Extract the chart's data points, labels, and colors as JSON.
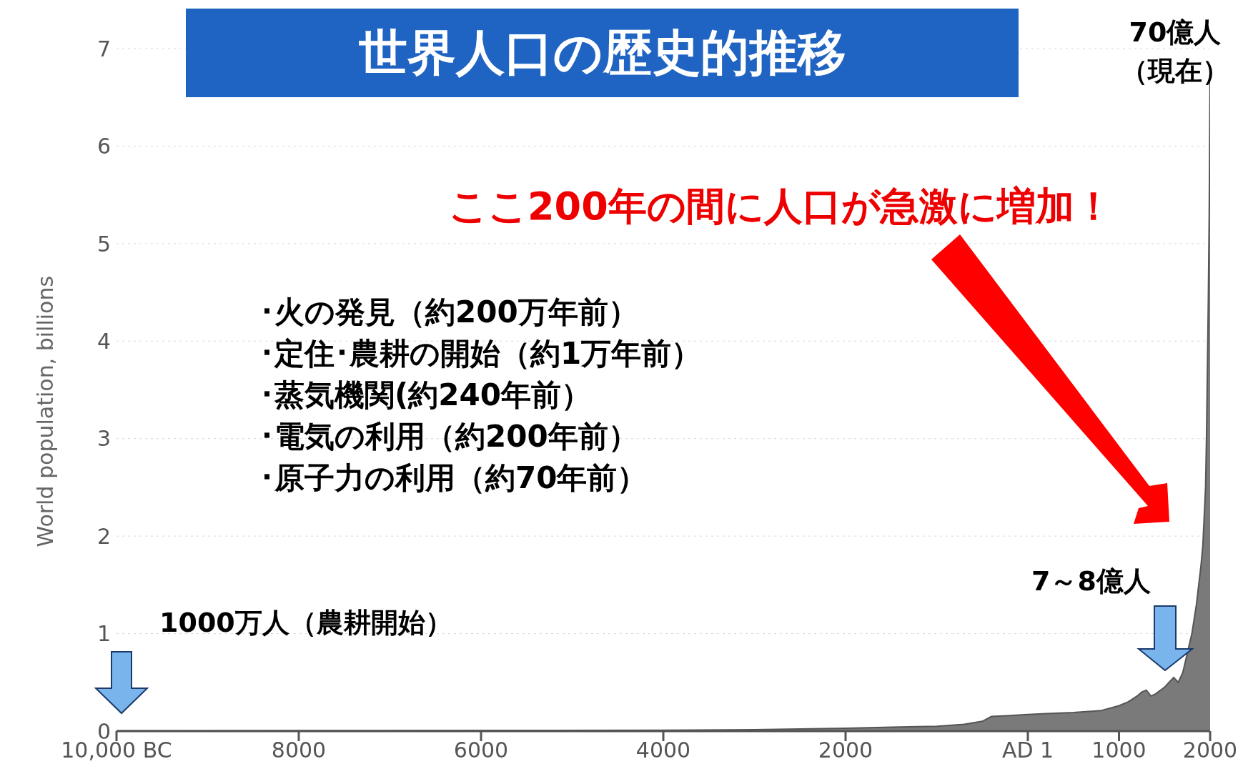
{
  "chart_data": {
    "type": "area",
    "title": "世界人口の歴史的推移",
    "ylabel": "World population, billions",
    "x": [
      -10000,
      -8000,
      -6000,
      -4000,
      -3000,
      -2000,
      -1500,
      -1000,
      -700,
      -500,
      -400,
      -200,
      0,
      200,
      500,
      800,
      1000,
      1100,
      1200,
      1250,
      1300,
      1350,
      1400,
      1500,
      1550,
      1600,
      1650,
      1700,
      1750,
      1800,
      1850,
      1900,
      1920,
      1950,
      1960,
      1970,
      1980,
      1990,
      2000
    ],
    "values": [
      0.004,
      0.005,
      0.007,
      0.01,
      0.015,
      0.03,
      0.04,
      0.05,
      0.07,
      0.1,
      0.15,
      0.16,
      0.17,
      0.18,
      0.19,
      0.21,
      0.26,
      0.3,
      0.36,
      0.4,
      0.42,
      0.36,
      0.38,
      0.45,
      0.5,
      0.55,
      0.5,
      0.6,
      0.8,
      1.0,
      1.3,
      1.7,
      1.9,
      2.5,
      3.0,
      3.7,
      4.4,
      5.3,
      6.8
    ],
    "color": "#7a7a7a",
    "xlim": [
      -10000,
      2000
    ],
    "xticks": [
      {
        "value": -10000,
        "label": "10,000 BC"
      },
      {
        "value": -8000,
        "label": "8000"
      },
      {
        "value": -6000,
        "label": "6000"
      },
      {
        "value": -4000,
        "label": "4000"
      },
      {
        "value": -2000,
        "label": "2000"
      },
      {
        "value": 0,
        "label": "AD 1"
      },
      1000,
      2000
    ],
    "ylim": [
      0,
      7
    ],
    "yticks": [
      0,
      1,
      2,
      3,
      4,
      5,
      6,
      7
    ],
    "grid": "y",
    "annotations": [
      "ここ200年の間に人口が急激に増加！",
      "･火の発見（約200万年前）",
      "･定住･農耕の開始（約1万年前）",
      "･蒸気機関(約240年前）",
      "･電気の利用（約200年前）",
      "･原子力の利用（約70年前）",
      "1000万人（農耕開始）",
      "7～8億人",
      "70億人",
      "（現在）"
    ]
  }
}
